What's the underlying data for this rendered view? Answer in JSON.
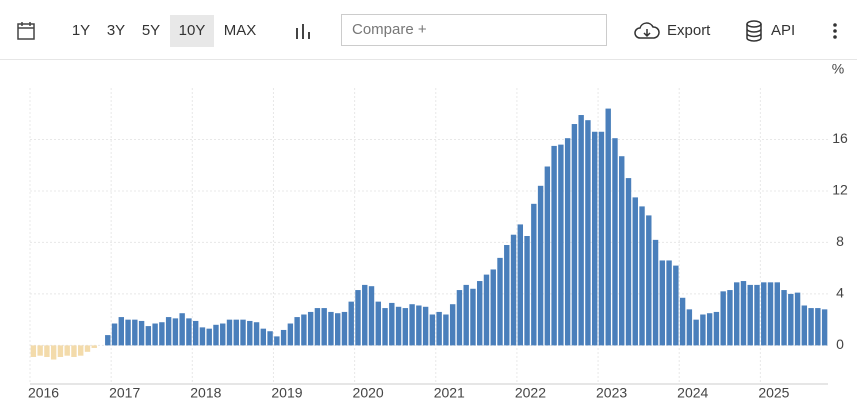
{
  "toolbar": {
    "ranges": [
      "1Y",
      "3Y",
      "5Y",
      "10Y",
      "MAX"
    ],
    "compare_placeholder": "Compare +",
    "export": "Export",
    "api": "API"
  },
  "chart_data": {
    "type": "bar",
    "y_axis_label": "%",
    "color": "#4a7fbb",
    "negative_color": "#f3dbab",
    "categories": [
      "2016",
      null,
      null,
      null,
      null,
      null,
      null,
      null,
      null,
      null,
      null,
      null,
      "2017",
      null,
      null,
      null,
      null,
      null,
      null,
      null,
      null,
      null,
      null,
      null,
      "2018",
      null,
      null,
      null,
      null,
      null,
      null,
      null,
      null,
      null,
      null,
      null,
      "2019",
      null,
      null,
      null,
      null,
      null,
      null,
      null,
      null,
      null,
      null,
      null,
      "2020",
      null,
      null,
      null,
      null,
      null,
      null,
      null,
      null,
      null,
      null,
      null,
      "2021",
      null,
      null,
      null,
      null,
      null,
      null,
      null,
      null,
      null,
      null,
      null,
      "2022",
      null,
      null,
      null,
      null,
      null,
      null,
      null,
      null,
      null,
      null,
      null,
      "2023",
      null,
      null,
      null,
      null,
      null,
      null,
      null,
      null,
      null,
      null,
      null,
      "2024",
      null,
      null,
      null,
      null,
      null,
      null,
      null,
      null,
      null,
      null,
      null,
      "2025",
      null,
      null,
      null,
      null,
      null,
      null,
      null,
      null,
      null
    ],
    "values": [
      -0.9,
      -0.8,
      -0.9,
      -1.1,
      -0.9,
      -0.8,
      -0.9,
      -0.8,
      -0.5,
      -0.2,
      0.0,
      0.8,
      1.7,
      2.2,
      2.0,
      2.0,
      1.9,
      1.5,
      1.7,
      1.8,
      2.2,
      2.1,
      2.5,
      2.1,
      1.9,
      1.4,
      1.3,
      1.6,
      1.7,
      2.0,
      2.0,
      2.0,
      1.9,
      1.8,
      1.3,
      1.1,
      0.7,
      1.2,
      1.7,
      2.2,
      2.4,
      2.6,
      2.9,
      2.9,
      2.6,
      2.5,
      2.6,
      3.4,
      4.3,
      4.7,
      4.6,
      3.4,
      2.9,
      3.3,
      3.0,
      2.9,
      3.2,
      3.1,
      3.0,
      2.4,
      2.6,
      2.4,
      3.2,
      4.3,
      4.7,
      4.4,
      5.0,
      5.5,
      5.9,
      6.8,
      7.8,
      8.6,
      9.4,
      8.5,
      11.0,
      12.4,
      13.9,
      15.5,
      15.6,
      16.1,
      17.2,
      17.9,
      17.5,
      16.6,
      16.6,
      18.4,
      16.1,
      14.7,
      13.0,
      11.5,
      10.8,
      10.1,
      8.2,
      6.6,
      6.6,
      6.2,
      3.7,
      2.8,
      2.0,
      2.4,
      2.5,
      2.6,
      4.2,
      4.3,
      4.9,
      5.0,
      4.7,
      4.7,
      4.9,
      4.9,
      4.9,
      4.3,
      4.0,
      4.1,
      3.1,
      2.9,
      2.9,
      2.8
    ],
    "ylim": [
      -3,
      20
    ],
    "yticks": [
      0,
      4,
      8,
      12,
      16
    ],
    "grid": true
  }
}
